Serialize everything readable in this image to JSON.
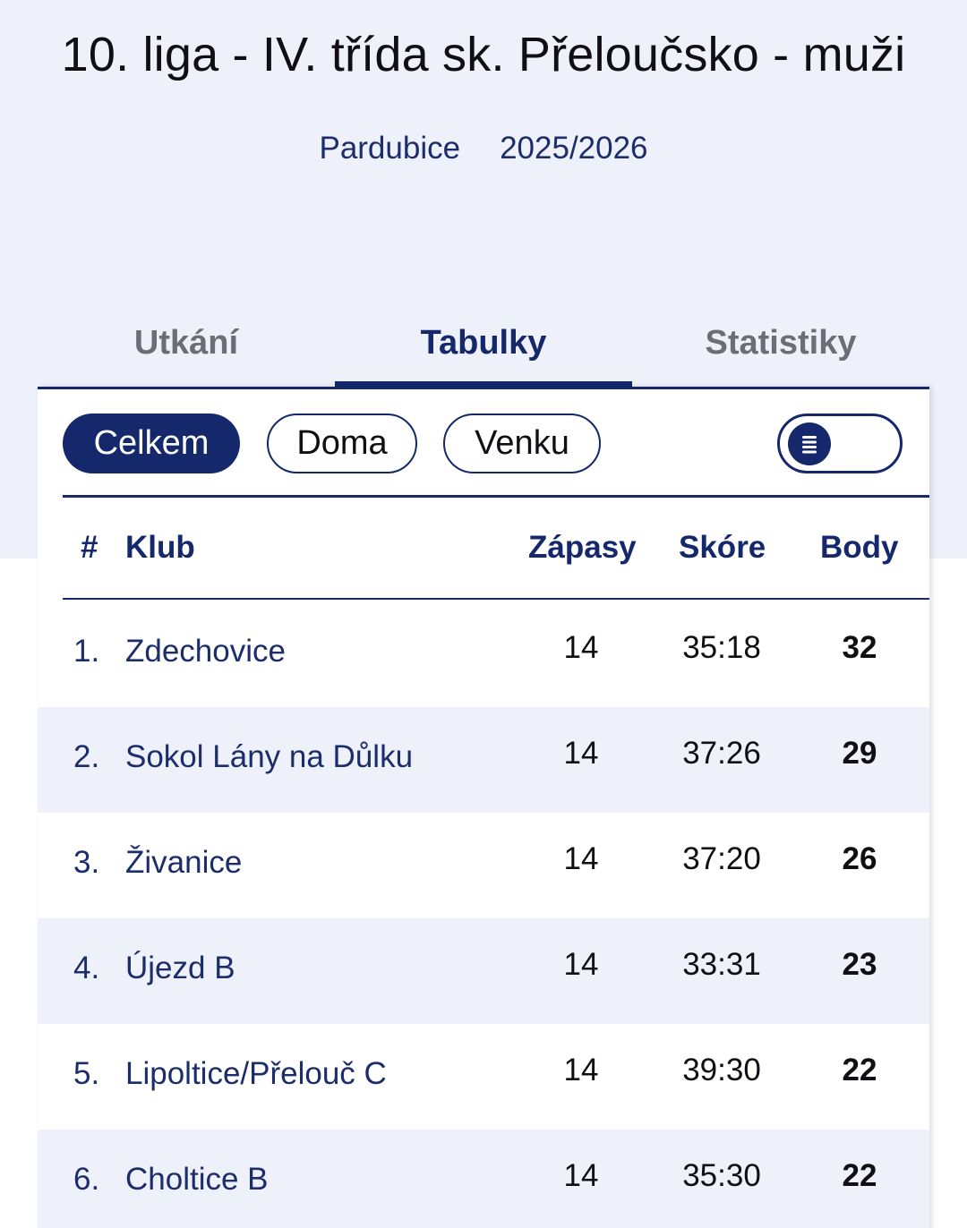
{
  "header": {
    "title": "10. liga - IV. třída sk. Přeloučsko - muži",
    "region": "Pardubice",
    "season": "2025/2026"
  },
  "tabs": [
    {
      "label": "Utkání",
      "active": false
    },
    {
      "label": "Tabulky",
      "active": true
    },
    {
      "label": "Statistiky",
      "active": false
    }
  ],
  "filters": {
    "celkem": "Celkem",
    "doma": "Doma",
    "venku": "Venku",
    "selected": "Celkem"
  },
  "table": {
    "headers": {
      "rank": "#",
      "club": "Klub",
      "matches": "Zápasy",
      "score": "Skóre",
      "points": "Body"
    },
    "rows": [
      {
        "rank": "1.",
        "club": "Zdechovice",
        "matches": "14",
        "score": "35:18",
        "points": "32"
      },
      {
        "rank": "2.",
        "club": "Sokol Lány na Důlku",
        "matches": "14",
        "score": "37:26",
        "points": "29"
      },
      {
        "rank": "3.",
        "club": "Živanice",
        "matches": "14",
        "score": "37:20",
        "points": "26"
      },
      {
        "rank": "4.",
        "club": "Újezd B",
        "matches": "14",
        "score": "33:31",
        "points": "23"
      },
      {
        "rank": "5.",
        "club": "Lipoltice/Přelouč C",
        "matches": "14",
        "score": "39:30",
        "points": "22"
      },
      {
        "rank": "6.",
        "club": "Choltice B",
        "matches": "14",
        "score": "35:30",
        "points": "22"
      }
    ]
  },
  "colors": {
    "accent": "#14286b",
    "band_background": "#eef1fa"
  },
  "icons": {
    "toggle": "list-icon"
  }
}
